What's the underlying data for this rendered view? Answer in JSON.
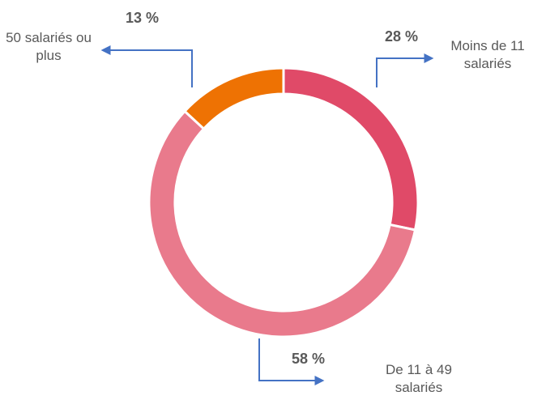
{
  "chart_data": {
    "type": "donut",
    "categories": [
      "Moins de 11 salariés",
      "De 11 à 49 salariés",
      "50 salariés ou plus"
    ],
    "values": [
      28,
      58,
      13
    ],
    "value_labels": [
      "28 %",
      "58 %",
      "13 %"
    ],
    "colors": [
      "#e04a68",
      "#e97a8c",
      "#ee7203"
    ]
  }
}
